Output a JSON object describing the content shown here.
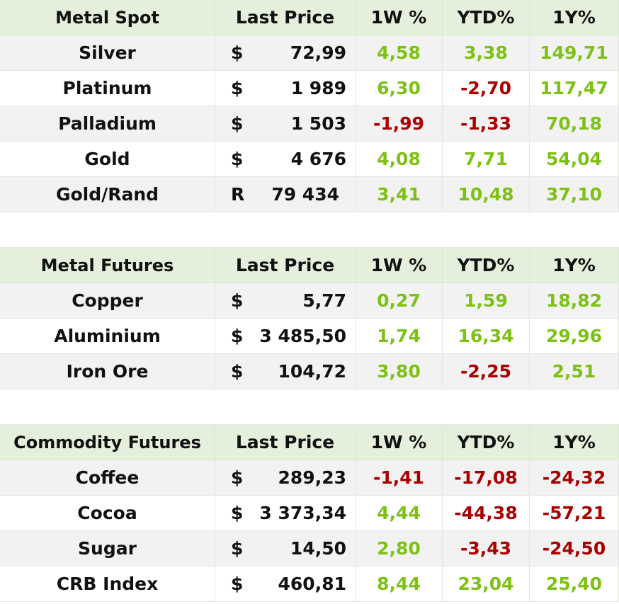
{
  "sections": [
    {
      "headers": [
        "Metal Spot",
        "Last Price",
        "1W %",
        "YTD%",
        "1Y%"
      ],
      "rows": [
        {
          "name": "Silver",
          "cur": "$",
          "price": "72,99",
          "w1": "4,58",
          "w1_dir": "pos",
          "ytd": "3,38",
          "ytd_dir": "pos",
          "y1": "149,71",
          "y1_dir": "pos"
        },
        {
          "name": "Platinum",
          "cur": "$",
          "price": "1 989",
          "w1": "6,30",
          "w1_dir": "pos",
          "ytd": "-2,70",
          "ytd_dir": "neg",
          "y1": "117,47",
          "y1_dir": "pos"
        },
        {
          "name": "Palladium",
          "cur": "$",
          "price": "1 503",
          "w1": "-1,99",
          "w1_dir": "neg",
          "ytd": "-1,33",
          "ytd_dir": "neg",
          "y1": "70,18",
          "y1_dir": "pos"
        },
        {
          "name": "Gold",
          "cur": "$",
          "price": "4 676",
          "w1": "4,08",
          "w1_dir": "pos",
          "ytd": "7,71",
          "ytd_dir": "pos",
          "y1": "54,04",
          "y1_dir": "pos"
        },
        {
          "name": "Gold/Rand",
          "cur": "R",
          "price": "79 434",
          "w1": "3,41",
          "w1_dir": "pos",
          "ytd": "10,48",
          "ytd_dir": "pos",
          "y1": "37,10",
          "y1_dir": "pos"
        }
      ]
    },
    {
      "headers": [
        "Metal Futures",
        "Last Price",
        "1W %",
        "YTD%",
        "1Y%"
      ],
      "rows": [
        {
          "name": "Copper",
          "cur": "$",
          "price": "5,77",
          "w1": "0,27",
          "w1_dir": "pos",
          "ytd": "1,59",
          "ytd_dir": "pos",
          "y1": "18,82",
          "y1_dir": "pos"
        },
        {
          "name": "Aluminium",
          "cur": "$",
          "price": "3 485,50",
          "w1": "1,74",
          "w1_dir": "pos",
          "ytd": "16,34",
          "ytd_dir": "pos",
          "y1": "29,96",
          "y1_dir": "pos"
        },
        {
          "name": "Iron Ore",
          "cur": "$",
          "price": "104,72",
          "w1": "3,80",
          "w1_dir": "pos",
          "ytd": "-2,25",
          "ytd_dir": "neg",
          "y1": "2,51",
          "y1_dir": "pos"
        }
      ]
    },
    {
      "headers": [
        "Commodity Futures",
        "Last Price",
        "1W %",
        "YTD%",
        "1Y%"
      ],
      "rows": [
        {
          "name": "Coffee",
          "cur": "$",
          "price": "289,23",
          "w1": "-1,41",
          "w1_dir": "neg",
          "ytd": "-17,08",
          "ytd_dir": "neg",
          "y1": "-24,32",
          "y1_dir": "neg"
        },
        {
          "name": "Cocoa",
          "cur": "$",
          "price": "3 373,34",
          "w1": "4,44",
          "w1_dir": "pos",
          "ytd": "-44,38",
          "ytd_dir": "neg",
          "y1": "-57,21",
          "y1_dir": "neg"
        },
        {
          "name": "Sugar",
          "cur": "$",
          "price": "14,50",
          "w1": "2,80",
          "w1_dir": "pos",
          "ytd": "-3,43",
          "ytd_dir": "neg",
          "y1": "-24,50",
          "y1_dir": "neg"
        },
        {
          "name": "CRB Index",
          "cur": "$",
          "price": "460,81",
          "w1": "8,44",
          "w1_dir": "pos",
          "ytd": "23,04",
          "ytd_dir": "pos",
          "y1": "25,40",
          "y1_dir": "pos"
        }
      ]
    }
  ],
  "colors": {
    "positive": "#7cc114",
    "negative": "#a80000",
    "header_bg": "#e5f0dc",
    "row_alt_bg": "#f2f2f2"
  }
}
